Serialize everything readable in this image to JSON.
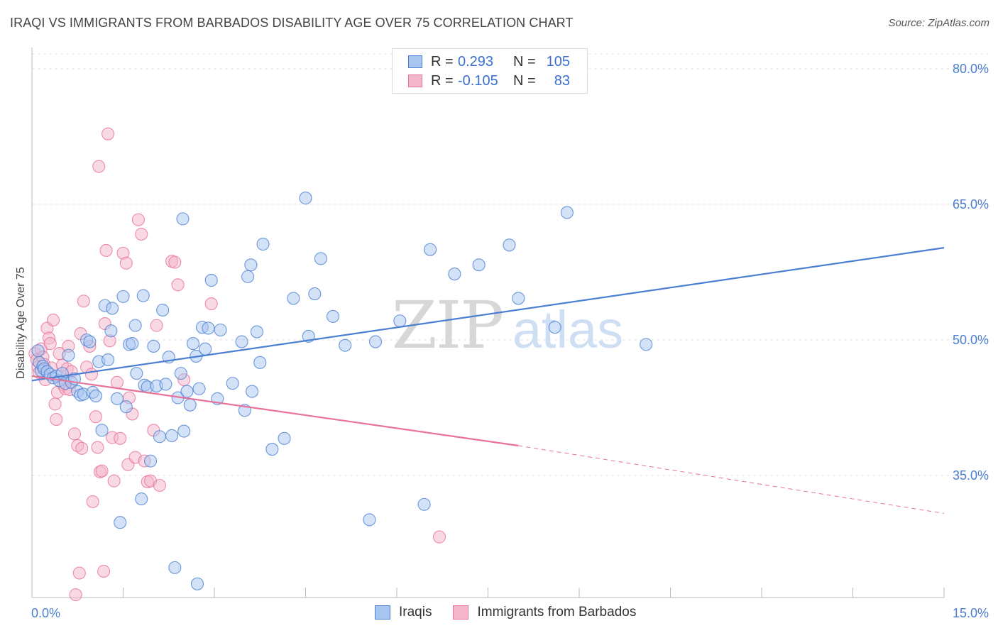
{
  "title": "IRAQI VS IMMIGRANTS FROM BARBADOS DISABILITY AGE OVER 75 CORRELATION CHART",
  "source": "Source: ZipAtlas.com",
  "watermark": {
    "zip": "ZIP",
    "atlas": "atlas"
  },
  "colors": {
    "blue": "#4a7fd1",
    "blue_fill": "#a9c6f1",
    "pink": "#e8729a",
    "pink_fill": "#f3b6ca",
    "grid": "#e3e3e3"
  },
  "legend": {
    "rows": [
      {
        "r_label": "R =",
        "r_value": "0.293",
        "n_label": "N =",
        "n_value": "105"
      },
      {
        "r_label": "R =",
        "r_value": "-0.105",
        "n_label": "N =",
        "n_value": "83"
      }
    ]
  },
  "bottom_legend": [
    "Iraqis",
    "Immigrants from Barbados"
  ],
  "chart_data": {
    "type": "scatter",
    "xlabel": "",
    "ylabel": "Disability Age Over 75",
    "xlim": [
      0,
      15
    ],
    "ylim": [
      21,
      83
    ],
    "x_tick_labels": [
      "0.0%",
      "15.0%"
    ],
    "y_ticks": [
      35,
      50,
      65,
      80
    ],
    "y_tick_labels": [
      "35.0%",
      "50.0%",
      "65.0%",
      "80.0%"
    ],
    "grid": true,
    "series": [
      {
        "name": "Iraqis",
        "color": "#4a7fd1",
        "trend": {
          "x0": 0.0,
          "y0": 45.5,
          "x1": 15.0,
          "y1": 60.2
        },
        "points": [
          [
            0.1,
            48.8
          ],
          [
            0.12,
            47.5
          ],
          [
            0.15,
            46.6
          ],
          [
            0.18,
            47.1
          ],
          [
            0.2,
            46.8
          ],
          [
            0.25,
            46.5
          ],
          [
            0.3,
            46.2
          ],
          [
            0.35,
            45.8
          ],
          [
            0.4,
            46.0
          ],
          [
            0.45,
            45.5
          ],
          [
            0.5,
            46.3
          ],
          [
            0.55,
            45.2
          ],
          [
            0.6,
            48.3
          ],
          [
            0.65,
            45.3
          ],
          [
            0.7,
            45.7
          ],
          [
            0.75,
            44.3
          ],
          [
            0.8,
            43.9
          ],
          [
            0.85,
            44.0
          ],
          [
            0.9,
            50.0
          ],
          [
            0.95,
            49.8
          ],
          [
            1.0,
            44.2
          ],
          [
            1.05,
            43.8
          ],
          [
            1.1,
            47.6
          ],
          [
            1.15,
            40.0
          ],
          [
            1.2,
            53.8
          ],
          [
            1.25,
            47.8
          ],
          [
            1.3,
            51.0
          ],
          [
            1.32,
            53.5
          ],
          [
            1.4,
            43.5
          ],
          [
            1.45,
            29.8
          ],
          [
            1.5,
            54.8
          ],
          [
            1.55,
            42.6
          ],
          [
            1.6,
            49.5
          ],
          [
            1.65,
            49.6
          ],
          [
            1.7,
            51.6
          ],
          [
            1.72,
            46.3
          ],
          [
            1.8,
            32.4
          ],
          [
            1.83,
            54.9
          ],
          [
            1.85,
            45.0
          ],
          [
            1.9,
            44.8
          ],
          [
            1.95,
            36.6
          ],
          [
            2.0,
            49.3
          ],
          [
            2.05,
            44.9
          ],
          [
            2.1,
            39.3
          ],
          [
            2.15,
            53.3
          ],
          [
            2.2,
            45.1
          ],
          [
            2.25,
            48.1
          ],
          [
            2.3,
            39.4
          ],
          [
            2.35,
            24.8
          ],
          [
            2.4,
            43.6
          ],
          [
            2.45,
            46.3
          ],
          [
            2.48,
            63.4
          ],
          [
            2.5,
            39.9
          ],
          [
            2.55,
            44.3
          ],
          [
            2.6,
            42.8
          ],
          [
            2.65,
            49.6
          ],
          [
            2.7,
            48.2
          ],
          [
            2.72,
            23.0
          ],
          [
            2.75,
            44.6
          ],
          [
            2.8,
            51.4
          ],
          [
            2.85,
            49.0
          ],
          [
            2.9,
            51.3
          ],
          [
            2.95,
            56.6
          ],
          [
            3.05,
            43.5
          ],
          [
            3.1,
            51.1
          ],
          [
            3.3,
            45.2
          ],
          [
            3.45,
            49.8
          ],
          [
            3.5,
            42.2
          ],
          [
            3.55,
            57.0
          ],
          [
            3.6,
            58.3
          ],
          [
            3.62,
            44.3
          ],
          [
            3.7,
            50.9
          ],
          [
            3.75,
            47.5
          ],
          [
            3.8,
            60.6
          ],
          [
            3.95,
            37.9
          ],
          [
            4.15,
            39.1
          ],
          [
            4.3,
            54.6
          ],
          [
            4.5,
            65.7
          ],
          [
            4.55,
            50.4
          ],
          [
            4.65,
            55.1
          ],
          [
            4.75,
            59.0
          ],
          [
            4.95,
            52.6
          ],
          [
            5.15,
            49.4
          ],
          [
            5.55,
            30.1
          ],
          [
            5.65,
            49.8
          ],
          [
            6.05,
            52.1
          ],
          [
            6.45,
            31.8
          ],
          [
            6.55,
            60.0
          ],
          [
            6.95,
            57.3
          ],
          [
            7.35,
            58.3
          ],
          [
            7.85,
            60.5
          ],
          [
            8.0,
            54.6
          ],
          [
            8.6,
            51.4
          ],
          [
            8.8,
            64.1
          ],
          [
            10.1,
            49.5
          ]
        ]
      },
      {
        "name": "Immigrants from Barbados",
        "color": "#e8729a",
        "trend": {
          "x0": 0.0,
          "y0": 46.0,
          "x1": 8.0,
          "y1": 38.3
        },
        "trend_dashed": {
          "x0": 8.0,
          "y0": 38.3,
          "x1": 15.0,
          "y1": 30.8
        },
        "points": [
          [
            0.05,
            48.5
          ],
          [
            0.08,
            47.8
          ],
          [
            0.1,
            47.0
          ],
          [
            0.12,
            46.4
          ],
          [
            0.15,
            49.0
          ],
          [
            0.18,
            48.1
          ],
          [
            0.2,
            47.3
          ],
          [
            0.22,
            45.6
          ],
          [
            0.25,
            51.3
          ],
          [
            0.28,
            50.2
          ],
          [
            0.3,
            49.6
          ],
          [
            0.32,
            46.9
          ],
          [
            0.35,
            52.2
          ],
          [
            0.38,
            42.9
          ],
          [
            0.4,
            41.2
          ],
          [
            0.42,
            44.2
          ],
          [
            0.45,
            48.5
          ],
          [
            0.5,
            47.2
          ],
          [
            0.52,
            45.0
          ],
          [
            0.55,
            44.6
          ],
          [
            0.58,
            46.8
          ],
          [
            0.6,
            49.3
          ],
          [
            0.62,
            44.5
          ],
          [
            0.65,
            46.5
          ],
          [
            0.7,
            39.6
          ],
          [
            0.72,
            21.8
          ],
          [
            0.75,
            38.3
          ],
          [
            0.78,
            24.2
          ],
          [
            0.8,
            50.7
          ],
          [
            0.82,
            38.0
          ],
          [
            0.85,
            54.3
          ],
          [
            0.9,
            47.0
          ],
          [
            0.95,
            49.3
          ],
          [
            0.98,
            46.2
          ],
          [
            1.0,
            32.1
          ],
          [
            1.05,
            41.5
          ],
          [
            1.08,
            38.1
          ],
          [
            1.1,
            69.2
          ],
          [
            1.12,
            35.4
          ],
          [
            1.15,
            35.5
          ],
          [
            1.18,
            24.4
          ],
          [
            1.2,
            51.8
          ],
          [
            1.22,
            59.9
          ],
          [
            1.25,
            72.8
          ],
          [
            1.28,
            49.9
          ],
          [
            1.32,
            39.2
          ],
          [
            1.35,
            34.4
          ],
          [
            1.4,
            45.3
          ],
          [
            1.45,
            39.1
          ],
          [
            1.5,
            59.6
          ],
          [
            1.55,
            58.5
          ],
          [
            1.58,
            36.2
          ],
          [
            1.6,
            43.6
          ],
          [
            1.65,
            41.8
          ],
          [
            1.7,
            37.0
          ],
          [
            1.75,
            63.3
          ],
          [
            1.8,
            61.7
          ],
          [
            1.85,
            36.6
          ],
          [
            1.9,
            34.3
          ],
          [
            1.95,
            34.4
          ],
          [
            2.0,
            40.0
          ],
          [
            2.05,
            51.6
          ],
          [
            2.1,
            33.9
          ],
          [
            2.3,
            58.7
          ],
          [
            2.35,
            58.6
          ],
          [
            2.4,
            56.1
          ],
          [
            2.5,
            45.6
          ],
          [
            2.95,
            54.0
          ],
          [
            6.7,
            28.2
          ]
        ]
      }
    ]
  }
}
